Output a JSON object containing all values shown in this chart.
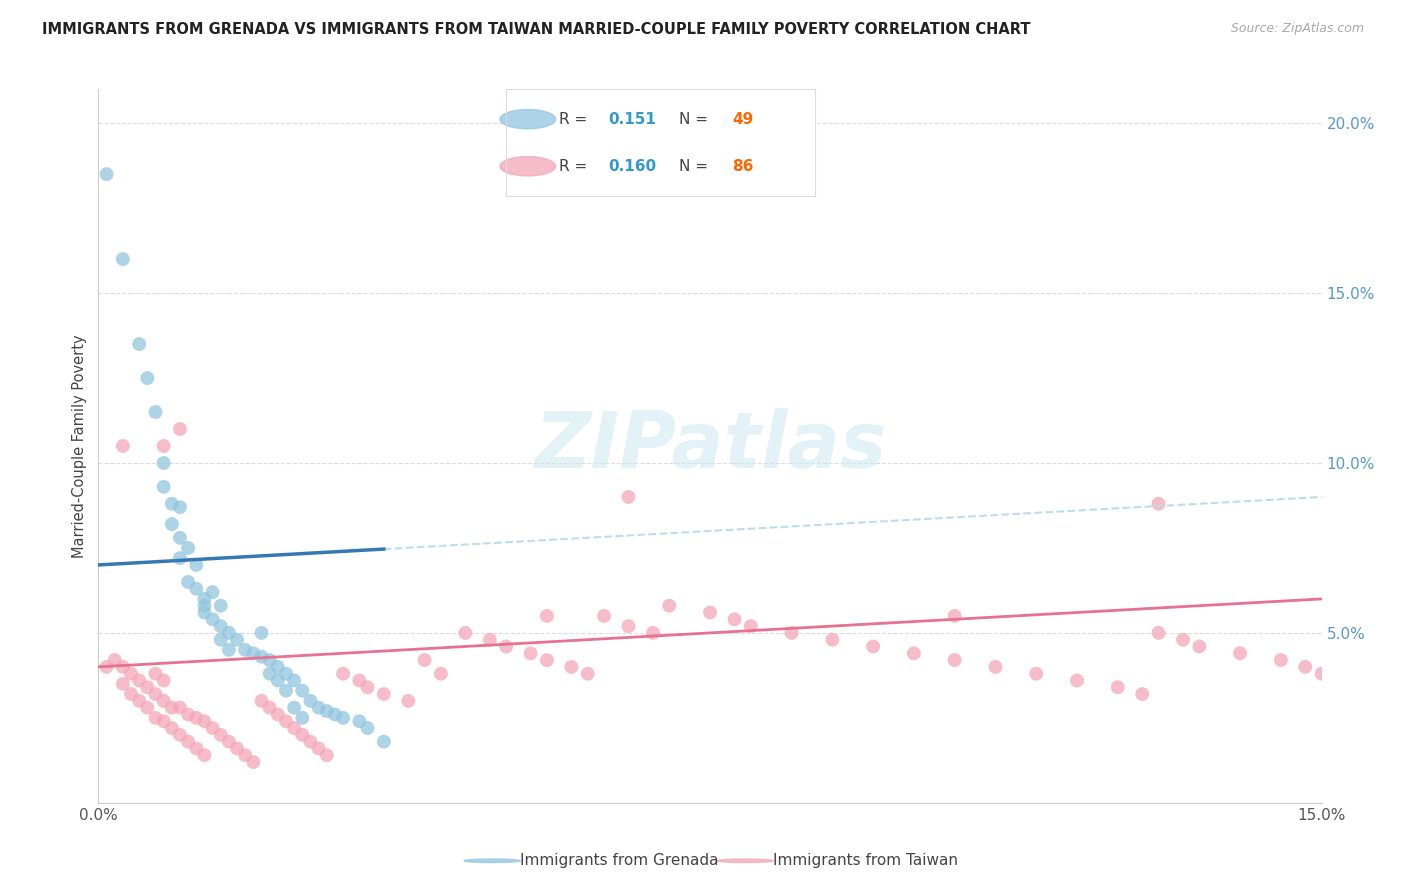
{
  "title": "IMMIGRANTS FROM GRENADA VS IMMIGRANTS FROM TAIWAN MARRIED-COUPLE FAMILY POVERTY CORRELATION CHART",
  "source": "Source: ZipAtlas.com",
  "ylabel": "Married-Couple Family Poverty",
  "xlim": [
    0.0,
    0.15
  ],
  "ylim": [
    0.0,
    0.21
  ],
  "xtick_pos": [
    0.0,
    0.03,
    0.06,
    0.09,
    0.12,
    0.15
  ],
  "xtick_labels": [
    "0.0%",
    "",
    "",
    "",
    "",
    "15.0%"
  ],
  "yticks_right": [
    0.0,
    0.05,
    0.1,
    0.15,
    0.2
  ],
  "ytick_labels_right": [
    "",
    "5.0%",
    "10.0%",
    "15.0%",
    "20.0%"
  ],
  "grenada_color": "#92c5de",
  "taiwan_color": "#f4a6b8",
  "grenada_line_color": "#3478b5",
  "taiwan_line_color": "#e87090",
  "grenada_dashed_color": "#bbddee",
  "legend_R_grenada": "0.151",
  "legend_N_grenada": "49",
  "legend_R_taiwan": "0.160",
  "legend_N_taiwan": "86",
  "legend_label_grenada": "Immigrants from Grenada",
  "legend_label_taiwan": "Immigrants from Taiwan",
  "watermark": "ZIPatlas",
  "grenada_line_x0": 0.0,
  "grenada_line_y0": 0.07,
  "grenada_line_x1": 0.15,
  "grenada_line_y1": 0.09,
  "taiwan_line_x0": 0.0,
  "taiwan_line_y0": 0.04,
  "taiwan_line_x1": 0.15,
  "taiwan_line_y1": 0.06,
  "grenada_x": [
    0.001,
    0.003,
    0.005,
    0.006,
    0.007,
    0.008,
    0.008,
    0.009,
    0.009,
    0.01,
    0.01,
    0.01,
    0.011,
    0.011,
    0.012,
    0.012,
    0.013,
    0.013,
    0.013,
    0.014,
    0.014,
    0.015,
    0.015,
    0.015,
    0.016,
    0.016,
    0.017,
    0.018,
    0.019,
    0.02,
    0.02,
    0.021,
    0.021,
    0.022,
    0.022,
    0.023,
    0.023,
    0.024,
    0.024,
    0.025,
    0.025,
    0.026,
    0.027,
    0.028,
    0.029,
    0.03,
    0.032,
    0.033,
    0.035
  ],
  "grenada_y": [
    0.185,
    0.16,
    0.135,
    0.125,
    0.115,
    0.1,
    0.093,
    0.088,
    0.082,
    0.087,
    0.078,
    0.072,
    0.075,
    0.065,
    0.07,
    0.063,
    0.06,
    0.058,
    0.056,
    0.062,
    0.054,
    0.058,
    0.052,
    0.048,
    0.05,
    0.045,
    0.048,
    0.045,
    0.044,
    0.05,
    0.043,
    0.042,
    0.038,
    0.04,
    0.036,
    0.038,
    0.033,
    0.036,
    0.028,
    0.033,
    0.025,
    0.03,
    0.028,
    0.027,
    0.026,
    0.025,
    0.024,
    0.022,
    0.018
  ],
  "taiwan_x": [
    0.001,
    0.002,
    0.003,
    0.003,
    0.004,
    0.004,
    0.005,
    0.005,
    0.006,
    0.006,
    0.007,
    0.007,
    0.007,
    0.008,
    0.008,
    0.008,
    0.009,
    0.009,
    0.01,
    0.01,
    0.011,
    0.011,
    0.012,
    0.012,
    0.013,
    0.013,
    0.014,
    0.015,
    0.016,
    0.017,
    0.018,
    0.019,
    0.02,
    0.021,
    0.022,
    0.023,
    0.024,
    0.025,
    0.026,
    0.027,
    0.028,
    0.03,
    0.032,
    0.033,
    0.035,
    0.038,
    0.04,
    0.042,
    0.045,
    0.048,
    0.05,
    0.053,
    0.055,
    0.058,
    0.06,
    0.062,
    0.065,
    0.068,
    0.07,
    0.075,
    0.078,
    0.08,
    0.085,
    0.09,
    0.095,
    0.1,
    0.105,
    0.11,
    0.115,
    0.12,
    0.125,
    0.128,
    0.13,
    0.133,
    0.135,
    0.14,
    0.145,
    0.148,
    0.15,
    0.003,
    0.008,
    0.01,
    0.055,
    0.065,
    0.105,
    0.13
  ],
  "taiwan_y": [
    0.04,
    0.042,
    0.04,
    0.035,
    0.038,
    0.032,
    0.036,
    0.03,
    0.034,
    0.028,
    0.038,
    0.032,
    0.025,
    0.036,
    0.03,
    0.024,
    0.028,
    0.022,
    0.028,
    0.02,
    0.026,
    0.018,
    0.025,
    0.016,
    0.024,
    0.014,
    0.022,
    0.02,
    0.018,
    0.016,
    0.014,
    0.012,
    0.03,
    0.028,
    0.026,
    0.024,
    0.022,
    0.02,
    0.018,
    0.016,
    0.014,
    0.038,
    0.036,
    0.034,
    0.032,
    0.03,
    0.042,
    0.038,
    0.05,
    0.048,
    0.046,
    0.044,
    0.042,
    0.04,
    0.038,
    0.055,
    0.052,
    0.05,
    0.058,
    0.056,
    0.054,
    0.052,
    0.05,
    0.048,
    0.046,
    0.044,
    0.042,
    0.04,
    0.038,
    0.036,
    0.034,
    0.032,
    0.05,
    0.048,
    0.046,
    0.044,
    0.042,
    0.04,
    0.038,
    0.105,
    0.105,
    0.11,
    0.055,
    0.09,
    0.055,
    0.088
  ]
}
